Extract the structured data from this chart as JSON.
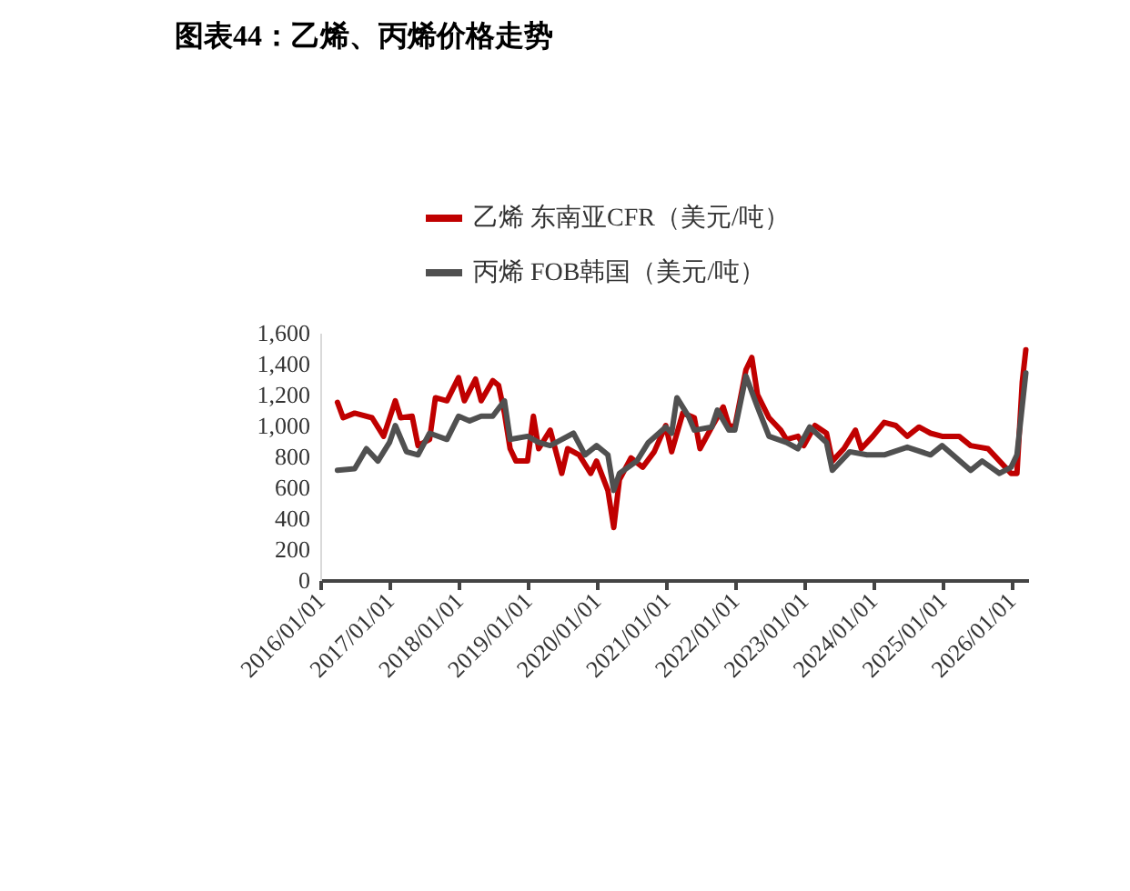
{
  "chart_data": {
    "type": "line",
    "title": "图表44：乙烯、丙烯价格走势",
    "xlim": [
      "2016-01-01",
      "2026-04-01"
    ],
    "xticks": [
      {
        "value": "2016-01-01",
        "label": "2016/01/01"
      },
      {
        "value": "2017-01-01",
        "label": "2017/01/01"
      },
      {
        "value": "2018-01-01",
        "label": "2018/01/01"
      },
      {
        "value": "2019-01-01",
        "label": "2019/01/01"
      },
      {
        "value": "2020-01-01",
        "label": "2020/01/01"
      },
      {
        "value": "2021-01-01",
        "label": "2021/01/01"
      },
      {
        "value": "2022-01-01",
        "label": "2022/01/01"
      },
      {
        "value": "2023-01-01",
        "label": "2023/01/01"
      },
      {
        "value": "2024-01-01",
        "label": "2024/01/01"
      },
      {
        "value": "2025-01-01",
        "label": "2025/01/01"
      },
      {
        "value": "2026-01-01",
        "label": "2026/01/01"
      }
    ],
    "ylim": [
      0,
      1600
    ],
    "yticks": [
      0,
      200,
      400,
      600,
      800,
      {
        "value": 1000,
        "label": "1,000"
      },
      {
        "value": 1200,
        "label": "1,200"
      },
      {
        "value": 1400,
        "label": "1,400"
      },
      {
        "value": 1600,
        "label": "1,600"
      }
    ],
    "grid": false,
    "legend": "top",
    "marker": "none",
    "line_style": "solid",
    "series": [
      {
        "name": "乙烯 东南亚CFR（美元/吨）",
        "color": "#c00000",
        "x": [
          "2016-04",
          "2016-05",
          "2016-07",
          "2016-10",
          "2016-12",
          "2017-02",
          "2017-03",
          "2017-05",
          "2017-06",
          "2017-08",
          "2017-09",
          "2017-11",
          "2018-01",
          "2018-02",
          "2018-04",
          "2018-05",
          "2018-07",
          "2018-08",
          "2018-09",
          "2018-10",
          "2018-11",
          "2019-01",
          "2019-02",
          "2019-03",
          "2019-05",
          "2019-07",
          "2019-08",
          "2019-10",
          "2019-12",
          "2020-01",
          "2020-03",
          "2020-04",
          "2020-05",
          "2020-07",
          "2020-09",
          "2020-11",
          "2021-01",
          "2021-02",
          "2021-04",
          "2021-06",
          "2021-07",
          "2021-09",
          "2021-11",
          "2021-12",
          "2022-01",
          "2022-03",
          "2022-04",
          "2022-05",
          "2022-07",
          "2022-09",
          "2022-10",
          "2022-12",
          "2023-01",
          "2023-03",
          "2023-05",
          "2023-06",
          "2023-08",
          "2023-10",
          "2023-11",
          "2024-01",
          "2024-03",
          "2024-05",
          "2024-07",
          "2024-09",
          "2024-11",
          "2025-01",
          "2025-04",
          "2025-06",
          "2025-09",
          "2025-11",
          "2026-01",
          "2026-02",
          "2026-03",
          "2026-03-20"
        ],
        "values": [
          1150,
          1050,
          1080,
          1050,
          930,
          1160,
          1050,
          1060,
          870,
          910,
          1180,
          1160,
          1310,
          1160,
          1300,
          1160,
          1290,
          1260,
          1080,
          850,
          770,
          770,
          1060,
          850,
          970,
          690,
          850,
          810,
          690,
          770,
          580,
          340,
          650,
          790,
          730,
          830,
          1000,
          830,
          1080,
          1050,
          850,
          990,
          1120,
          1000,
          990,
          1360,
          1440,
          1200,
          1050,
          970,
          910,
          930,
          870,
          1000,
          950,
          770,
          850,
          970,
          850,
          930,
          1020,
          1000,
          930,
          990,
          950,
          930,
          930,
          870,
          850,
          770,
          690,
          690,
          1280,
          1490
        ]
      },
      {
        "name": "丙烯 FOB韩国（美元/吨）",
        "color": "#505050",
        "x": [
          "2016-04",
          "2016-07",
          "2016-09",
          "2016-11",
          "2017-01",
          "2017-02",
          "2017-04",
          "2017-06",
          "2017-08",
          "2017-11",
          "2018-01",
          "2018-03",
          "2018-05",
          "2018-07",
          "2018-09",
          "2018-10",
          "2019-01",
          "2019-03",
          "2019-05",
          "2019-07",
          "2019-09",
          "2019-11",
          "2020-01",
          "2020-03",
          "2020-04",
          "2020-05",
          "2020-08",
          "2020-10",
          "2021-01",
          "2021-02",
          "2021-03",
          "2021-05",
          "2021-06",
          "2021-09",
          "2021-10",
          "2021-12",
          "2022-01",
          "2022-03",
          "2022-05",
          "2022-07",
          "2022-10",
          "2022-12",
          "2023-02",
          "2023-05",
          "2023-06",
          "2023-09",
          "2023-12",
          "2024-03",
          "2024-07",
          "2024-11",
          "2025-01",
          "2025-06",
          "2025-08",
          "2025-11",
          "2026-01",
          "2026-02",
          "2026-03-20"
        ],
        "values": [
          710,
          720,
          850,
          770,
          890,
          1000,
          830,
          810,
          950,
          910,
          1060,
          1030,
          1060,
          1060,
          1160,
          910,
          930,
          890,
          870,
          910,
          950,
          810,
          870,
          810,
          580,
          690,
          770,
          890,
          990,
          950,
          1180,
          1060,
          970,
          990,
          1100,
          970,
          970,
          1320,
          1120,
          930,
          890,
          850,
          990,
          890,
          710,
          830,
          810,
          810,
          860,
          810,
          870,
          710,
          770,
          690,
          730,
          810,
          1340
        ]
      }
    ]
  }
}
